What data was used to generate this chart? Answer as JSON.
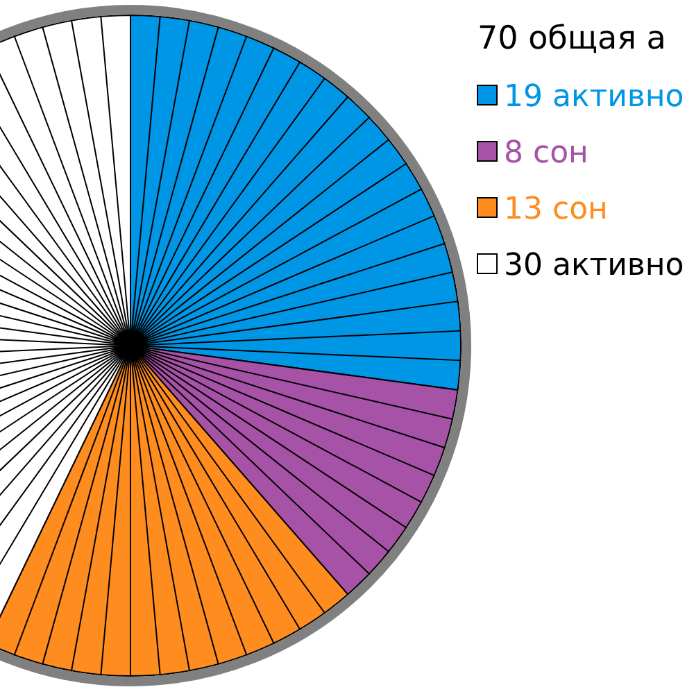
{
  "chart_data": {
    "type": "pie",
    "legend_title": "70 общая а",
    "categories": [
      "19 активно",
      "8 сон",
      "13 сон",
      "30 активно"
    ],
    "values": [
      19,
      8,
      13,
      30
    ],
    "colors": [
      "#0096e6",
      "#a652a6",
      "#ff8c1e",
      "#ffffff"
    ],
    "legend": "top right"
  }
}
